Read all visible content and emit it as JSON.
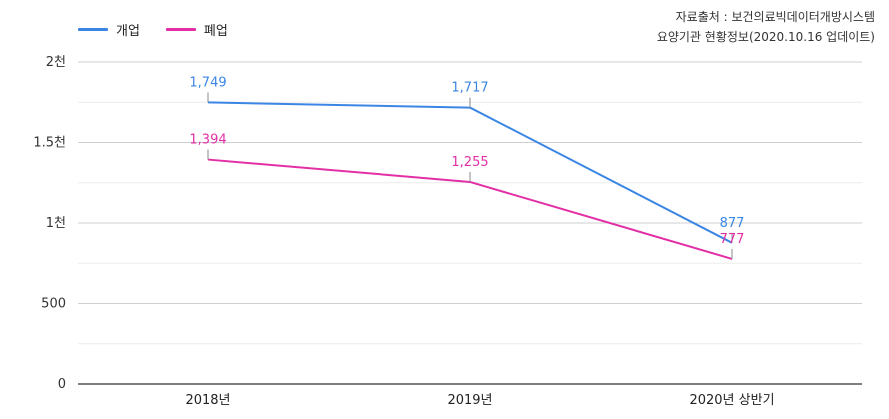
{
  "chart_data": {
    "type": "line",
    "categories": [
      "2018년",
      "2019년",
      "2020년 상반기"
    ],
    "series": [
      {
        "name": "개업",
        "color": "#3b86e4",
        "values": [
          1749,
          1717,
          877
        ],
        "labels": [
          "1,749",
          "1,717",
          "877"
        ]
      },
      {
        "name": "폐업",
        "color": "#e22fa6",
        "values": [
          1394,
          1255,
          777
        ],
        "labels": [
          "1,394",
          "1,255",
          "777"
        ]
      }
    ],
    "ylim": [
      0,
      2000
    ],
    "yticks": [
      0,
      500,
      1000,
      1500,
      2000
    ],
    "ytick_labels": [
      "0",
      "500",
      "1천",
      "1.5천",
      "2천"
    ],
    "grid": true,
    "legend_position": "top-left",
    "source_lines": [
      "자료출처 : 보건의료빅데이터개방시스템",
      "요양기관 현황정보(2020.10.16 업데이트)"
    ]
  }
}
